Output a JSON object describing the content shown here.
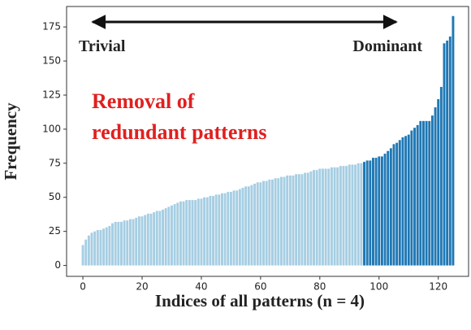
{
  "chart_data": {
    "type": "bar",
    "xlabel": "Indices of all patterns (n = 4)",
    "ylabel": "Frequency",
    "annotations": {
      "left": "Trivial",
      "right": "Dominant",
      "center": [
        "Removal of",
        "redundant patterns"
      ]
    },
    "xlim": [
      -5.5,
      130.5
    ],
    "xticks": [
      0,
      20,
      40,
      60,
      80,
      100,
      120
    ],
    "ylim": [
      -8,
      190
    ],
    "yticks": [
      0,
      25,
      50,
      75,
      100,
      125,
      150,
      175
    ],
    "series": [
      {
        "color": "#a6cee3",
        "x": [
          0,
          1,
          2,
          3,
          4,
          5,
          6,
          7,
          8,
          9,
          10,
          11,
          12,
          13,
          14,
          15,
          16,
          17,
          18,
          19,
          20,
          21,
          22,
          23,
          24,
          25,
          26,
          27,
          28,
          29,
          30,
          31,
          32,
          33,
          34,
          35,
          36,
          37,
          38,
          39,
          40,
          41,
          42,
          43,
          44,
          45,
          46,
          47,
          48,
          49,
          50,
          51,
          52,
          53,
          54,
          55,
          56,
          57,
          58,
          59,
          60,
          61,
          62,
          63,
          64,
          65,
          66,
          67,
          68,
          69,
          70,
          71,
          72,
          73,
          74,
          75,
          76,
          77,
          78,
          79,
          80,
          81,
          82,
          83,
          84,
          85,
          86,
          87,
          88,
          89,
          90,
          91,
          92,
          93,
          94
        ],
        "values": [
          15,
          19,
          22,
          24,
          25,
          26,
          26,
          27,
          28,
          29,
          31,
          32,
          32,
          32,
          33,
          33,
          34,
          34,
          35,
          36,
          36,
          37,
          38,
          38,
          39,
          40,
          40,
          41,
          42,
          43,
          44,
          45,
          46,
          47,
          47,
          48,
          48,
          48,
          48,
          49,
          49,
          50,
          50,
          51,
          51,
          52,
          52,
          53,
          53,
          54,
          54,
          55,
          55,
          56,
          57,
          58,
          58,
          59,
          60,
          61,
          61,
          62,
          62,
          63,
          63,
          64,
          64,
          65,
          65,
          66,
          66,
          66,
          67,
          67,
          67,
          68,
          68,
          69,
          70,
          70,
          71,
          71,
          71,
          71,
          72,
          72,
          72,
          73,
          73,
          73,
          74,
          74,
          74,
          75,
          75
        ]
      },
      {
        "color": "#1f78b4",
        "x": [
          95,
          96,
          97,
          98,
          99,
          100,
          101,
          102,
          103,
          104,
          105,
          106,
          107,
          108,
          109,
          110,
          111,
          112,
          113,
          114,
          115,
          116,
          117,
          118,
          119,
          120,
          121,
          122,
          123,
          124,
          125
        ],
        "values": [
          76,
          77,
          77,
          79,
          79,
          80,
          80,
          82,
          84,
          86,
          89,
          90,
          92,
          94,
          95,
          96,
          99,
          101,
          103,
          106,
          106,
          106,
          106,
          110,
          116,
          122,
          131,
          163,
          165,
          168,
          183
        ]
      }
    ]
  }
}
